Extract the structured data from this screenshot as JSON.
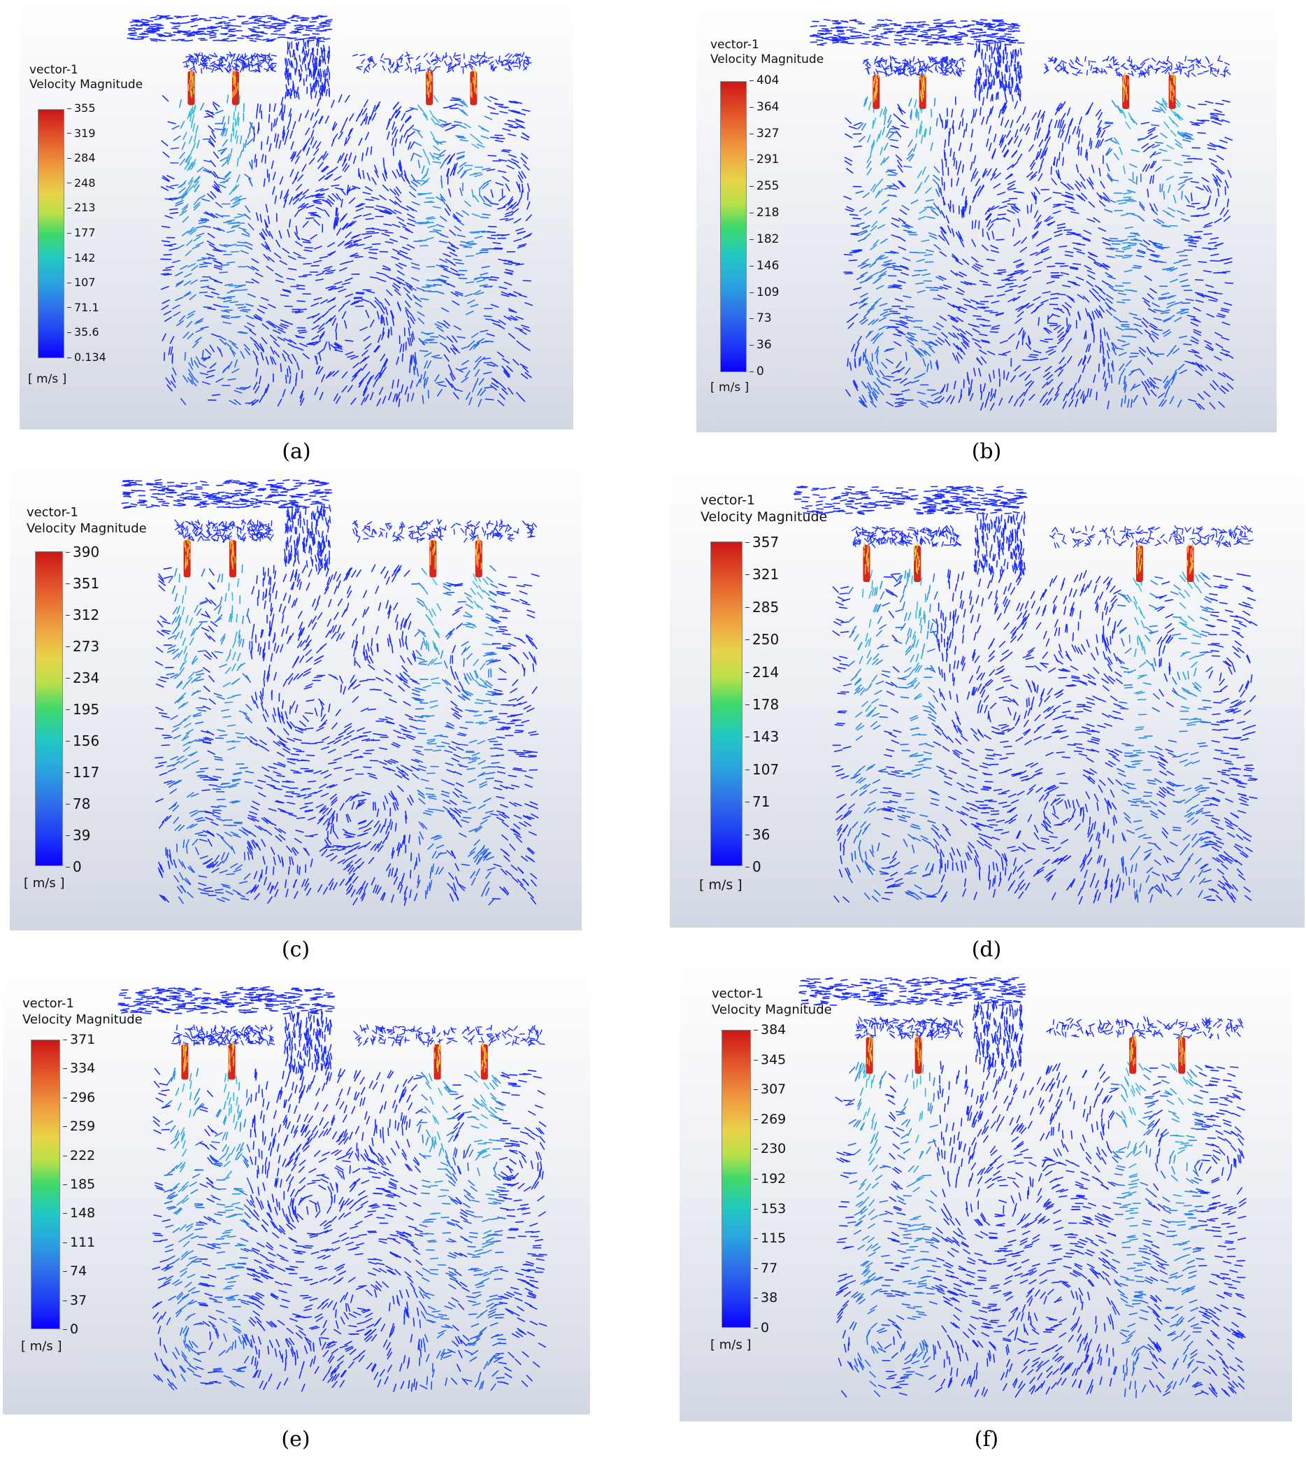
{
  "panels": [
    {
      "id": "a",
      "caption": "(a)",
      "legend_title": [
        "vector-1",
        "Velocity Magnitude"
      ],
      "ticks": [
        "355",
        "319",
        "284",
        "248",
        "213",
        "177",
        "142",
        "107",
        "71.1",
        "35.6",
        "0.134"
      ],
      "unit": "[ m/s ]"
    },
    {
      "id": "b",
      "caption": "(b)",
      "legend_title": [
        "vector-1",
        "Velocity Magnitude"
      ],
      "ticks": [
        "404",
        "364",
        "327",
        "291",
        "255",
        "218",
        "182",
        "146",
        "109",
        "73",
        "36",
        "0"
      ],
      "unit": "[ m/s ]"
    },
    {
      "id": "c",
      "caption": "(c)",
      "legend_title": [
        "vector-1",
        "Velocity Magnitude"
      ],
      "ticks": [
        "390",
        "351",
        "312",
        "273",
        "234",
        "195",
        "156",
        "117",
        "78",
        "39",
        "0"
      ],
      "unit": "[ m/s ]"
    },
    {
      "id": "d",
      "caption": "(d)",
      "legend_title": [
        "vector-1",
        "Velocity Magnitude"
      ],
      "ticks": [
        "357",
        "321",
        "285",
        "250",
        "214",
        "178",
        "143",
        "107",
        "71",
        "36",
        "0"
      ],
      "unit": "[ m/s ]"
    },
    {
      "id": "e",
      "caption": "(e)",
      "legend_title": [
        "vector-1",
        "Velocity Magnitude"
      ],
      "ticks": [
        "371",
        "334",
        "296",
        "259",
        "222",
        "185",
        "148",
        "111",
        "74",
        "37",
        "0"
      ],
      "unit": "[ m/s ]"
    },
    {
      "id": "f",
      "caption": "(f)",
      "legend_title": [
        "vector-1",
        "Velocity Magnitude"
      ],
      "ticks": [
        "384",
        "345",
        "307",
        "269",
        "230",
        "192",
        "153",
        "115",
        "77",
        "38",
        "0"
      ],
      "unit": "[ m/s ]"
    }
  ],
  "colors": {
    "vector_low": "#1a2cff",
    "vector_mid": "#38c9d8",
    "jet_high": "#d8261a"
  }
}
